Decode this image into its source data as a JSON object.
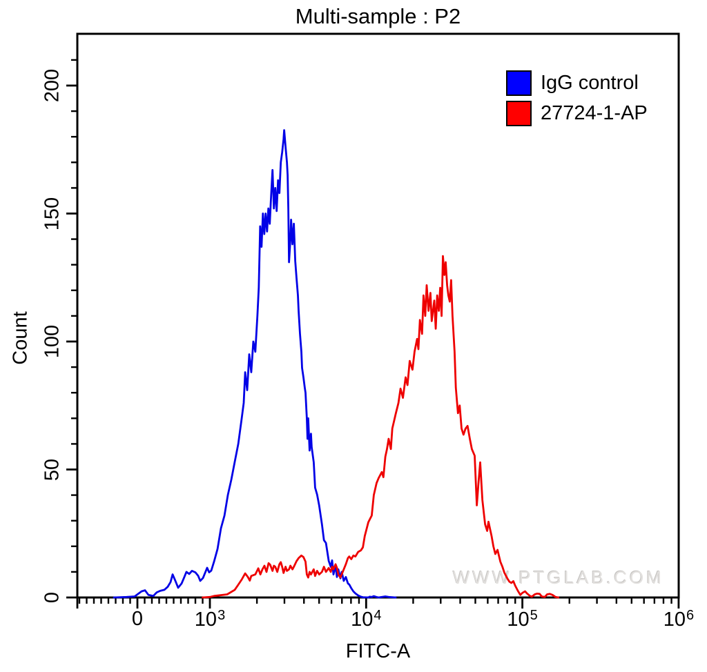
{
  "title": "Multi-sample : P2",
  "watermark": "WWW.PTGLAB.COM",
  "legend": {
    "position": "top-right",
    "items": [
      {
        "label": "IgG control",
        "color": "#0000ff"
      },
      {
        "label": "27724-1-AP",
        "color": "#ff0000"
      }
    ]
  },
  "chart_data": {
    "type": "line",
    "subtype": "flow-cytometry-histogram-overlay",
    "title": "Multi-sample : P2",
    "xlabel": "FITC-A",
    "ylabel": "Count",
    "x_scale": "biexponential (linear below 10^3, log decades above)",
    "xlim": [
      -830,
      1000000
    ],
    "ylim": [
      0,
      220
    ],
    "grid": false,
    "legend_position": "top-right",
    "x_ticks": [
      {
        "base": "0",
        "exp": "",
        "value": 0
      },
      {
        "base": "10",
        "exp": "3",
        "value": 1000
      },
      {
        "base": "10",
        "exp": "4",
        "value": 10000
      },
      {
        "base": "10",
        "exp": "5",
        "value": 100000
      },
      {
        "base": "10",
        "exp": "6",
        "value": 1000000
      }
    ],
    "y_ticks": [
      0,
      50,
      100,
      150,
      200
    ],
    "y_minor_step": 10,
    "series": [
      {
        "name": "IgG control",
        "color": "#0202e6",
        "peak": {
          "x": 3000,
          "y": 182
        },
        "points": [
          [
            -324,
            0
          ],
          [
            -150,
            0.2
          ],
          [
            -38,
            0.4
          ],
          [
            57,
            2.4
          ],
          [
            105,
            2.8
          ],
          [
            152,
            1
          ],
          [
            219,
            0.6
          ],
          [
            267,
            2
          ],
          [
            314,
            2.6
          ],
          [
            371,
            3
          ],
          [
            419,
            4.2
          ],
          [
            457,
            6
          ],
          [
            486,
            9
          ],
          [
            524,
            6.5
          ],
          [
            562,
            3.8
          ],
          [
            610,
            5.5
          ],
          [
            648,
            8
          ],
          [
            676,
            10
          ],
          [
            714,
            9.2
          ],
          [
            752,
            10.4
          ],
          [
            800,
            9.8
          ],
          [
            838,
            8.5
          ],
          [
            867,
            6.5
          ],
          [
            905,
            7.6
          ],
          [
            962,
            11.6
          ],
          [
            990,
            9.8
          ],
          [
            1021,
            10.5
          ],
          [
            1063,
            14
          ],
          [
            1119,
            19
          ],
          [
            1177,
            27
          ],
          [
            1239,
            32
          ],
          [
            1303,
            40
          ],
          [
            1371,
            46
          ],
          [
            1443,
            53
          ],
          [
            1519,
            60
          ],
          [
            1598,
            70
          ],
          [
            1647,
            76
          ],
          [
            1682,
            88
          ],
          [
            1733,
            81
          ],
          [
            1786,
            95
          ],
          [
            1840,
            88
          ],
          [
            1897,
            100
          ],
          [
            1954,
            96
          ],
          [
            2014,
            110
          ],
          [
            2055,
            121
          ],
          [
            2097,
            145
          ],
          [
            2140,
            137
          ],
          [
            2184,
            150
          ],
          [
            2229,
            142
          ],
          [
            2274,
            150
          ],
          [
            2321,
            143
          ],
          [
            2368,
            152
          ],
          [
            2417,
            146
          ],
          [
            2467,
            157
          ],
          [
            2517,
            167
          ],
          [
            2569,
            152
          ],
          [
            2621,
            160
          ],
          [
            2675,
            151
          ],
          [
            2730,
            163
          ],
          [
            2786,
            158
          ],
          [
            2843,
            170
          ],
          [
            2901,
            174
          ],
          [
            2960,
            179
          ],
          [
            2990,
            182.6
          ],
          [
            3051,
            176
          ],
          [
            3114,
            170
          ],
          [
            3145,
            165
          ],
          [
            3177,
            152
          ],
          [
            3210,
            131
          ],
          [
            3275,
            140
          ],
          [
            3309,
            147.6
          ],
          [
            3376,
            138
          ],
          [
            3445,
            146
          ],
          [
            3516,
            131.5
          ],
          [
            3587,
            124.7
          ],
          [
            3661,
            118
          ],
          [
            3698,
            112
          ],
          [
            3773,
            103
          ],
          [
            3850,
            96
          ],
          [
            3889,
            89.7
          ],
          [
            3969,
            86
          ],
          [
            4049,
            82
          ],
          [
            4091,
            80
          ],
          [
            4174,
            70
          ],
          [
            4217,
            62
          ],
          [
            4260,
            70
          ],
          [
            4347,
            57.4
          ],
          [
            4436,
            64
          ],
          [
            4481,
            58.8
          ],
          [
            4618,
            52.8
          ],
          [
            4713,
            42.9
          ],
          [
            4857,
            40.2
          ],
          [
            5006,
            35.9
          ],
          [
            5212,
            28.6
          ],
          [
            5370,
            22.4
          ],
          [
            5533,
            21.3
          ],
          [
            5760,
            14.3
          ],
          [
            5937,
            12
          ],
          [
            6058,
            14.5
          ],
          [
            6182,
            9
          ],
          [
            6372,
            12.5
          ],
          [
            6502,
            8
          ],
          [
            6635,
            11
          ],
          [
            6839,
            7.5
          ],
          [
            6978,
            10
          ],
          [
            7192,
            6.5
          ],
          [
            7413,
            8
          ],
          [
            7641,
            5.5
          ],
          [
            7797,
            5.1
          ],
          [
            8037,
            3.6
          ],
          [
            8284,
            2.4
          ],
          [
            8538,
            1.6
          ],
          [
            8888,
            0.8
          ],
          [
            9252,
            0.3
          ],
          [
            9533,
            0.1
          ],
          [
            10330,
            0
          ],
          [
            10540,
            0.3
          ],
          [
            10860,
            0.2
          ],
          [
            11200,
            0.5
          ],
          [
            11660,
            0.2
          ],
          [
            12010,
            0
          ],
          [
            13270,
            0.4
          ],
          [
            13940,
            0.2
          ],
          [
            15450,
            0
          ]
        ]
      },
      {
        "name": "27724-1-AP",
        "color": "#ee0000",
        "peak": {
          "x": 31000,
          "y": 133
        },
        "points": [
          [
            900,
            0
          ],
          [
            1000,
            0.2
          ],
          [
            1063,
            0.6
          ],
          [
            1290,
            1.2
          ],
          [
            1443,
            3
          ],
          [
            1519,
            5
          ],
          [
            1598,
            7
          ],
          [
            1682,
            9.4
          ],
          [
            1750,
            8
          ],
          [
            1800,
            6.6
          ],
          [
            1840,
            8.4
          ],
          [
            1954,
            9
          ],
          [
            2040,
            11.4
          ],
          [
            2103,
            9
          ],
          [
            2168,
            11
          ],
          [
            2235,
            12.4
          ],
          [
            2304,
            10
          ],
          [
            2375,
            13.4
          ],
          [
            2430,
            12.8
          ],
          [
            2517,
            10.4
          ],
          [
            2569,
            12.4
          ],
          [
            2621,
            12
          ],
          [
            2700,
            10
          ],
          [
            2786,
            13
          ],
          [
            2843,
            13.8
          ],
          [
            2901,
            12
          ],
          [
            2960,
            9.6
          ],
          [
            3051,
            12
          ],
          [
            3114,
            10.4
          ],
          [
            3210,
            11
          ],
          [
            3275,
            12.4
          ],
          [
            3376,
            11
          ],
          [
            3445,
            12
          ],
          [
            3587,
            14.2
          ],
          [
            3698,
            15.4
          ],
          [
            3850,
            16.4
          ],
          [
            3969,
            15.8
          ],
          [
            4091,
            14
          ],
          [
            4174,
            9
          ],
          [
            4260,
            7.8
          ],
          [
            4347,
            10
          ],
          [
            4436,
            9
          ],
          [
            4618,
            11
          ],
          [
            4713,
            8.4
          ],
          [
            4857,
            10.4
          ],
          [
            5006,
            9
          ],
          [
            5212,
            10
          ],
          [
            5370,
            12
          ],
          [
            5533,
            10
          ],
          [
            5760,
            11.5
          ],
          [
            5937,
            10
          ],
          [
            6058,
            12
          ],
          [
            6182,
            11
          ],
          [
            6372,
            13
          ],
          [
            6502,
            11.6
          ],
          [
            6635,
            9
          ],
          [
            6839,
            7.8
          ],
          [
            6978,
            9
          ],
          [
            7192,
            11
          ],
          [
            7413,
            13
          ],
          [
            7641,
            15.4
          ],
          [
            7797,
            16
          ],
          [
            8037,
            15
          ],
          [
            8284,
            16.4
          ],
          [
            8538,
            16
          ],
          [
            8888,
            17.8
          ],
          [
            9252,
            18.4
          ],
          [
            9533,
            19.6
          ],
          [
            9800,
            24
          ],
          [
            10330,
            29.4
          ],
          [
            10860,
            32
          ],
          [
            11200,
            40
          ],
          [
            11660,
            44.7
          ],
          [
            12010,
            46.6
          ],
          [
            12600,
            49
          ],
          [
            12900,
            47
          ],
          [
            13270,
            55
          ],
          [
            13600,
            58
          ],
          [
            13940,
            62
          ],
          [
            14400,
            58
          ],
          [
            14700,
            66
          ],
          [
            15100,
            69
          ],
          [
            15450,
            71.7
          ],
          [
            16100,
            76
          ],
          [
            16600,
            81.6
          ],
          [
            17200,
            78
          ],
          [
            17900,
            86
          ],
          [
            18400,
            83
          ],
          [
            19000,
            92.4
          ],
          [
            19800,
            89
          ],
          [
            20400,
            96
          ],
          [
            21200,
            101
          ],
          [
            21600,
            97
          ],
          [
            22100,
            108.4
          ],
          [
            22800,
            103
          ],
          [
            23300,
            118
          ],
          [
            23900,
            110
          ],
          [
            24400,
            122
          ],
          [
            25100,
            112
          ],
          [
            25800,
            119
          ],
          [
            26300,
            108
          ],
          [
            27300,
            116
          ],
          [
            27900,
            105
          ],
          [
            28500,
            118
          ],
          [
            29200,
            112
          ],
          [
            29800,
            121
          ],
          [
            30400,
            110
          ],
          [
            31000,
            133.4
          ],
          [
            31700,
            126
          ],
          [
            32300,
            131
          ],
          [
            33000,
            122
          ],
          [
            33600,
            118
          ],
          [
            34300,
            115.6
          ],
          [
            35000,
            124
          ],
          [
            35700,
            110
          ],
          [
            36800,
            96
          ],
          [
            37500,
            82
          ],
          [
            38700,
            72
          ],
          [
            39700,
            75
          ],
          [
            40800,
            66
          ],
          [
            42000,
            63.6
          ],
          [
            43300,
            66
          ],
          [
            44600,
            67
          ],
          [
            46100,
            62
          ],
          [
            47500,
            58
          ],
          [
            49500,
            55.4
          ],
          [
            51100,
            36
          ],
          [
            52400,
            45
          ],
          [
            53700,
            52.8
          ],
          [
            55500,
            38
          ],
          [
            57700,
            28.6
          ],
          [
            59500,
            26
          ],
          [
            60700,
            29.6
          ],
          [
            63500,
            24
          ],
          [
            65200,
            20
          ],
          [
            67100,
            17
          ],
          [
            69300,
            18.6
          ],
          [
            72300,
            14
          ],
          [
            74500,
            12
          ],
          [
            76700,
            9.7
          ],
          [
            80000,
            7.5
          ],
          [
            82500,
            6.2
          ],
          [
            84900,
            5.7
          ],
          [
            87500,
            6.4
          ],
          [
            90000,
            4.6
          ],
          [
            93600,
            2.6
          ],
          [
            97100,
            1
          ],
          [
            100000,
            1.8
          ],
          [
            104000,
            2.4
          ],
          [
            107000,
            1.6
          ],
          [
            112000,
            0.6
          ],
          [
            115000,
            0.3
          ],
          [
            120000,
            1.2
          ],
          [
            124000,
            1.5
          ],
          [
            129000,
            1.4
          ],
          [
            133000,
            0.4
          ],
          [
            139000,
            0.2
          ],
          [
            144000,
            1.2
          ],
          [
            150000,
            1.4
          ],
          [
            156000,
            1
          ],
          [
            163000,
            0.2
          ],
          [
            170000,
            0
          ]
        ]
      }
    ]
  }
}
